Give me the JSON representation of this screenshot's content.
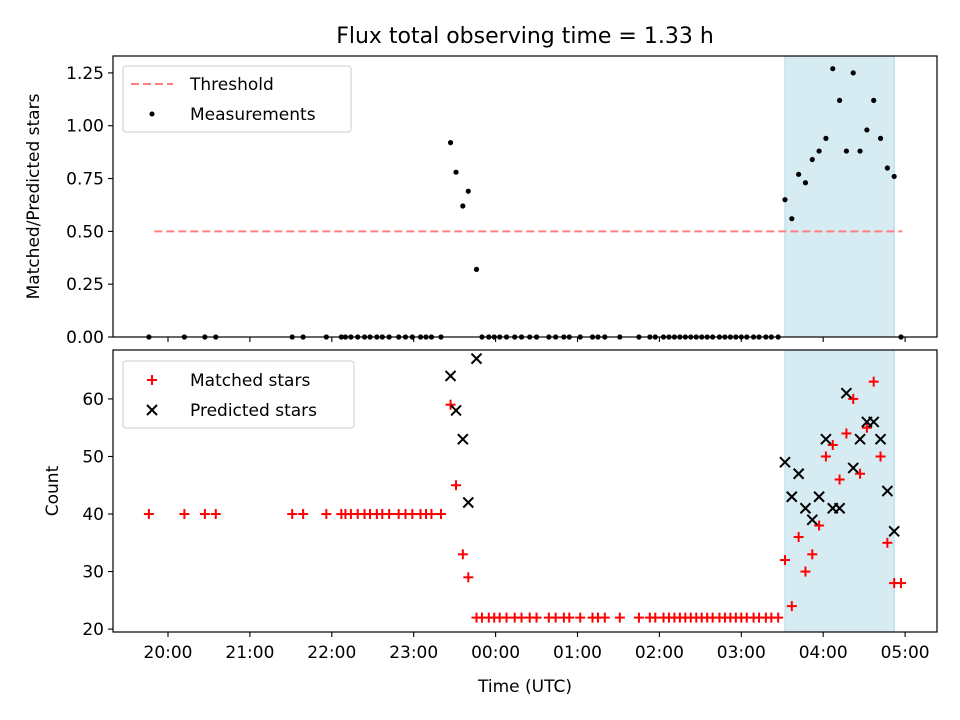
{
  "title": "Flux total observing time = 1.33 h",
  "colors": {
    "threshold": "#ff7f7f",
    "measurement": "#000000",
    "matched": "#ff0000",
    "predicted": "#000000",
    "span": "#add8e6"
  },
  "chart_data": [
    {
      "type": "scatter",
      "ylabel": "Matched/Predicted stars",
      "ylim": [
        0,
        1.33
      ],
      "yticks": [
        "0.00",
        "0.25",
        "0.50",
        "0.75",
        "1.00",
        "1.25"
      ],
      "x_axis": "time (UTC), shared with lower panel",
      "grid": false,
      "legend_position": "top-left",
      "legend": [
        "Threshold",
        "Measurements"
      ],
      "shaded_span": {
        "from": "03:32",
        "to": "04:52"
      },
      "threshold": {
        "name": "Threshold",
        "y": 0.5,
        "from": "19:50",
        "to": "04:58"
      },
      "series": [
        {
          "name": "Measurements",
          "points": [
            [
              "19:46",
              0
            ],
            [
              "20:12",
              0
            ],
            [
              "20:27",
              0
            ],
            [
              "20:35",
              0
            ],
            [
              "21:31",
              0
            ],
            [
              "21:39",
              0
            ],
            [
              "21:56",
              0
            ],
            [
              "22:07",
              0
            ],
            [
              "22:10",
              0
            ],
            [
              "22:14",
              0
            ],
            [
              "22:19",
              0
            ],
            [
              "22:24",
              0
            ],
            [
              "22:28",
              0
            ],
            [
              "22:33",
              0
            ],
            [
              "22:37",
              0
            ],
            [
              "22:42",
              0
            ],
            [
              "22:49",
              0
            ],
            [
              "22:54",
              0
            ],
            [
              "22:59",
              0
            ],
            [
              "23:05",
              0
            ],
            [
              "23:09",
              0
            ],
            [
              "23:13",
              0
            ],
            [
              "23:20",
              0
            ],
            [
              "23:27",
              0.92
            ],
            [
              "23:31",
              0.78
            ],
            [
              "23:36",
              0.62
            ],
            [
              "23:40",
              0.69
            ],
            [
              "23:46",
              0.32
            ],
            [
              "23:50",
              0
            ],
            [
              "23:55",
              0
            ],
            [
              "23:59",
              0
            ],
            [
              "00:03",
              0
            ],
            [
              "00:08",
              0
            ],
            [
              "00:14",
              0
            ],
            [
              "00:19",
              0
            ],
            [
              "00:25",
              0
            ],
            [
              "00:30",
              0
            ],
            [
              "00:39",
              0
            ],
            [
              "00:44",
              0
            ],
            [
              "00:50",
              0
            ],
            [
              "00:54",
              0
            ],
            [
              "01:02",
              0
            ],
            [
              "01:11",
              0
            ],
            [
              "01:15",
              0
            ],
            [
              "01:20",
              0
            ],
            [
              "01:31",
              0
            ],
            [
              "01:45",
              0
            ],
            [
              "01:53",
              0
            ],
            [
              "01:57",
              0
            ],
            [
              "02:03",
              0
            ],
            [
              "02:07",
              0
            ],
            [
              "02:11",
              0
            ],
            [
              "02:15",
              0
            ],
            [
              "02:19",
              0
            ],
            [
              "02:23",
              0
            ],
            [
              "02:27",
              0
            ],
            [
              "02:31",
              0
            ],
            [
              "02:35",
              0
            ],
            [
              "02:39",
              0
            ],
            [
              "02:44",
              0
            ],
            [
              "02:48",
              0
            ],
            [
              "02:52",
              0
            ],
            [
              "02:56",
              0
            ],
            [
              "03:00",
              0
            ],
            [
              "03:04",
              0
            ],
            [
              "03:09",
              0
            ],
            [
              "03:13",
              0
            ],
            [
              "03:18",
              0
            ],
            [
              "03:22",
              0
            ],
            [
              "03:27",
              0
            ],
            [
              "03:32",
              0.65
            ],
            [
              "03:37",
              0.56
            ],
            [
              "03:42",
              0.77
            ],
            [
              "03:47",
              0.73
            ],
            [
              "03:52",
              0.84
            ],
            [
              "03:57",
              0.88
            ],
            [
              "04:02",
              0.94
            ],
            [
              "04:07",
              1.27
            ],
            [
              "04:12",
              1.12
            ],
            [
              "04:17",
              0.88
            ],
            [
              "04:22",
              1.25
            ],
            [
              "04:27",
              0.88
            ],
            [
              "04:32",
              0.98
            ],
            [
              "04:37",
              1.12
            ],
            [
              "04:42",
              0.94
            ],
            [
              "04:47",
              0.8
            ],
            [
              "04:52",
              0.76
            ],
            [
              "04:57",
              0
            ]
          ]
        }
      ]
    },
    {
      "type": "scatter",
      "xlabel": "Time (UTC)",
      "ylabel": "Count",
      "ylim": [
        19.5,
        68.5
      ],
      "yticks": [
        "20",
        "30",
        "40",
        "50",
        "60"
      ],
      "xticks": [
        "20:00",
        "21:00",
        "22:00",
        "23:00",
        "00:00",
        "01:00",
        "02:00",
        "03:00",
        "04:00",
        "05:00"
      ],
      "grid": false,
      "legend_position": "top-left",
      "legend": [
        "Matched stars",
        "Predicted stars"
      ],
      "shaded_span": {
        "from": "03:32",
        "to": "04:52"
      },
      "series": [
        {
          "name": "Matched stars",
          "points": [
            [
              "19:46",
              40
            ],
            [
              "20:12",
              40
            ],
            [
              "20:27",
              40
            ],
            [
              "20:35",
              40
            ],
            [
              "21:31",
              40
            ],
            [
              "21:39",
              40
            ],
            [
              "21:56",
              40
            ],
            [
              "22:07",
              40
            ],
            [
              "22:10",
              40
            ],
            [
              "22:14",
              40
            ],
            [
              "22:19",
              40
            ],
            [
              "22:24",
              40
            ],
            [
              "22:28",
              40
            ],
            [
              "22:33",
              40
            ],
            [
              "22:37",
              40
            ],
            [
              "22:42",
              40
            ],
            [
              "22:49",
              40
            ],
            [
              "22:54",
              40
            ],
            [
              "22:59",
              40
            ],
            [
              "23:05",
              40
            ],
            [
              "23:09",
              40
            ],
            [
              "23:13",
              40
            ],
            [
              "23:20",
              40
            ],
            [
              "23:27",
              59
            ],
            [
              "23:31",
              45
            ],
            [
              "23:36",
              33
            ],
            [
              "23:40",
              29
            ],
            [
              "23:46",
              22
            ],
            [
              "23:50",
              22
            ],
            [
              "23:55",
              22
            ],
            [
              "23:59",
              22
            ],
            [
              "00:03",
              22
            ],
            [
              "00:08",
              22
            ],
            [
              "00:14",
              22
            ],
            [
              "00:19",
              22
            ],
            [
              "00:25",
              22
            ],
            [
              "00:30",
              22
            ],
            [
              "00:39",
              22
            ],
            [
              "00:44",
              22
            ],
            [
              "00:50",
              22
            ],
            [
              "00:54",
              22
            ],
            [
              "01:02",
              22
            ],
            [
              "01:11",
              22
            ],
            [
              "01:15",
              22
            ],
            [
              "01:20",
              22
            ],
            [
              "01:31",
              22
            ],
            [
              "01:45",
              22
            ],
            [
              "01:53",
              22
            ],
            [
              "01:57",
              22
            ],
            [
              "02:03",
              22
            ],
            [
              "02:07",
              22
            ],
            [
              "02:11",
              22
            ],
            [
              "02:15",
              22
            ],
            [
              "02:19",
              22
            ],
            [
              "02:23",
              22
            ],
            [
              "02:27",
              22
            ],
            [
              "02:31",
              22
            ],
            [
              "02:35",
              22
            ],
            [
              "02:39",
              22
            ],
            [
              "02:44",
              22
            ],
            [
              "02:48",
              22
            ],
            [
              "02:52",
              22
            ],
            [
              "02:56",
              22
            ],
            [
              "03:00",
              22
            ],
            [
              "03:04",
              22
            ],
            [
              "03:09",
              22
            ],
            [
              "03:13",
              22
            ],
            [
              "03:18",
              22
            ],
            [
              "03:22",
              22
            ],
            [
              "03:27",
              22
            ],
            [
              "03:32",
              32
            ],
            [
              "03:37",
              24
            ],
            [
              "03:42",
              36
            ],
            [
              "03:47",
              30
            ],
            [
              "03:52",
              33
            ],
            [
              "03:57",
              38
            ],
            [
              "04:02",
              50
            ],
            [
              "04:07",
              52
            ],
            [
              "04:12",
              46
            ],
            [
              "04:17",
              54
            ],
            [
              "04:22",
              60
            ],
            [
              "04:27",
              47
            ],
            [
              "04:32",
              55
            ],
            [
              "04:37",
              63
            ],
            [
              "04:42",
              50
            ],
            [
              "04:47",
              35
            ],
            [
              "04:52",
              28
            ],
            [
              "04:57",
              28
            ]
          ]
        },
        {
          "name": "Predicted stars",
          "points": [
            [
              "23:27",
              64
            ],
            [
              "23:31",
              58
            ],
            [
              "23:36",
              53
            ],
            [
              "23:40",
              42
            ],
            [
              "23:46",
              67
            ],
            [
              "03:32",
              49
            ],
            [
              "03:37",
              43
            ],
            [
              "03:42",
              47
            ],
            [
              "03:47",
              41
            ],
            [
              "03:52",
              39
            ],
            [
              "03:57",
              43
            ],
            [
              "04:02",
              53
            ],
            [
              "04:07",
              41
            ],
            [
              "04:12",
              41
            ],
            [
              "04:17",
              61
            ],
            [
              "04:22",
              48
            ],
            [
              "04:27",
              53
            ],
            [
              "04:32",
              56
            ],
            [
              "04:37",
              56
            ],
            [
              "04:42",
              53
            ],
            [
              "04:47",
              44
            ],
            [
              "04:52",
              37
            ]
          ]
        }
      ]
    }
  ]
}
